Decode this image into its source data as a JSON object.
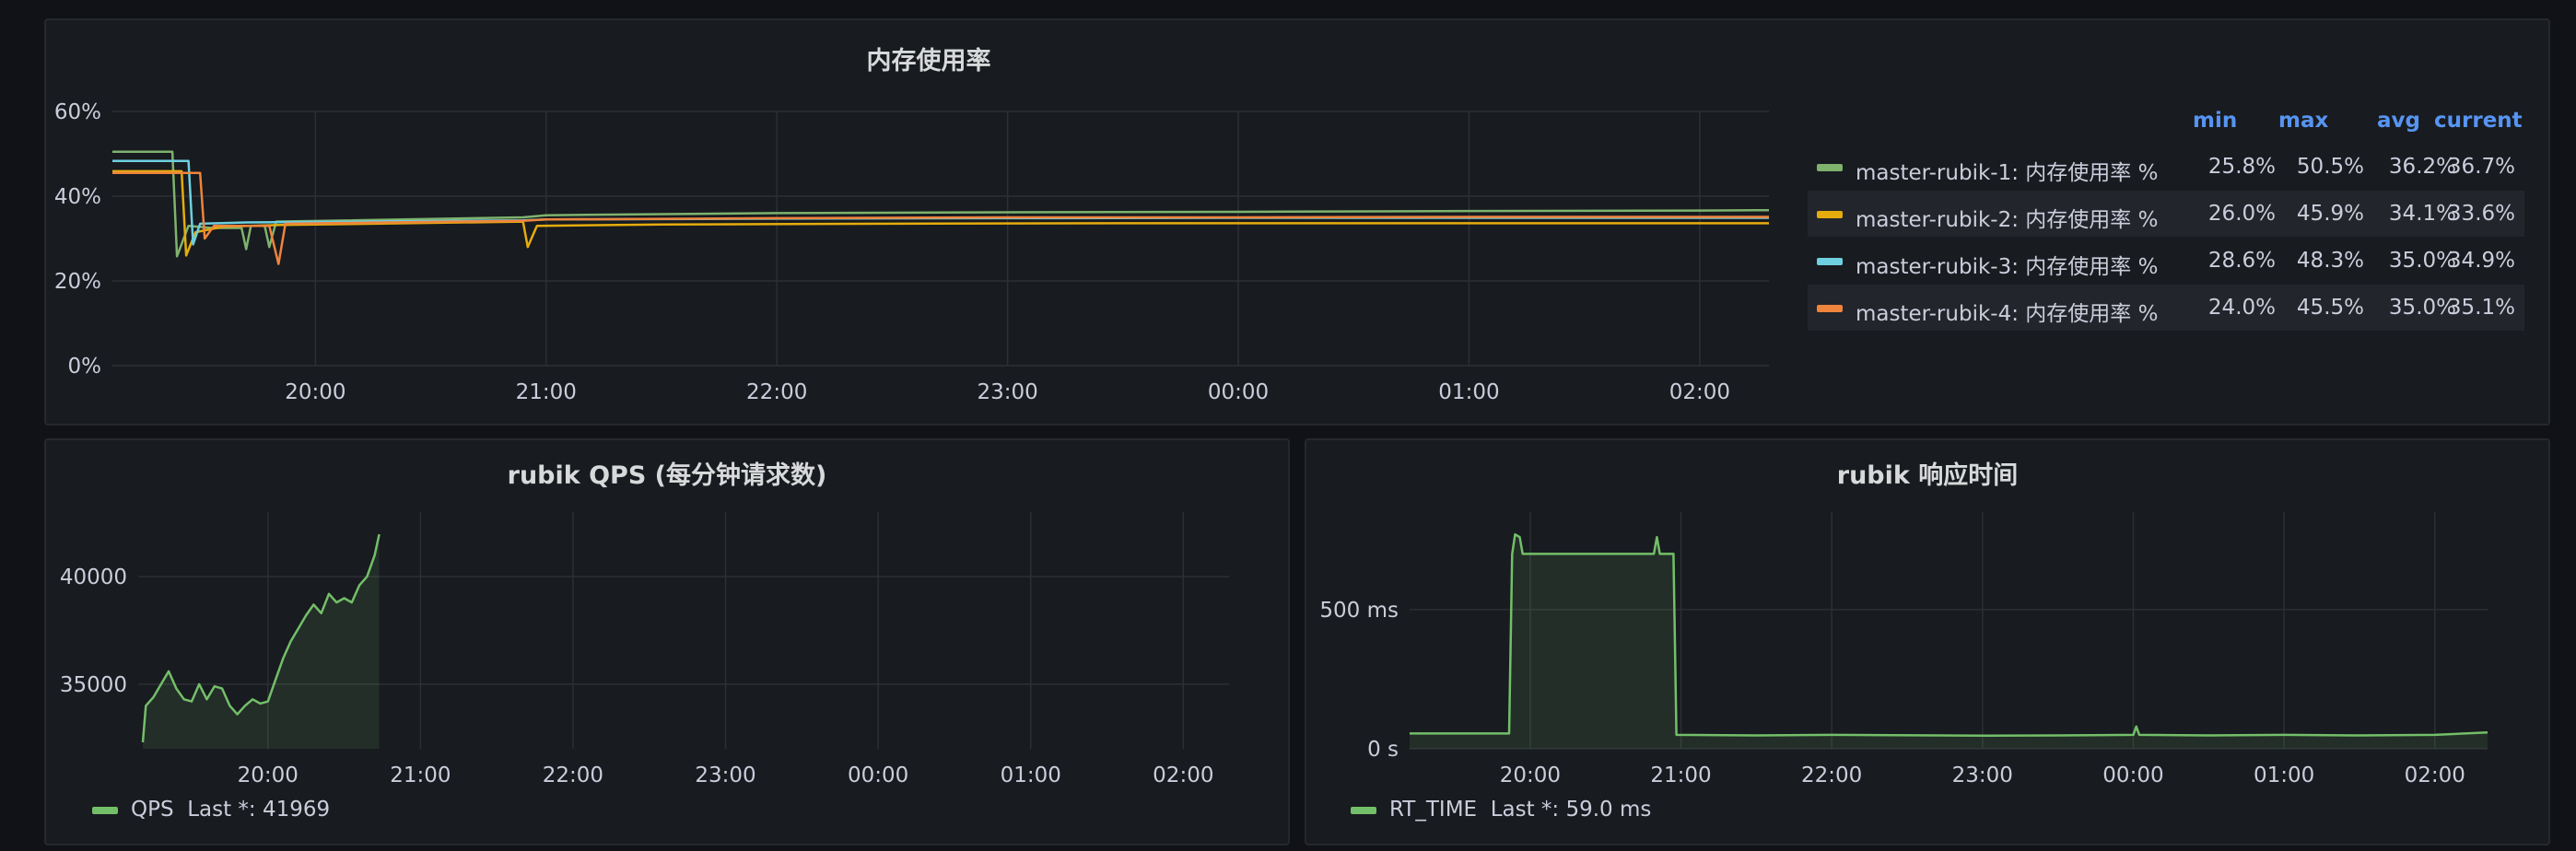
{
  "colors": {
    "rubik1": "#7eb26d",
    "rubik2": "#e5ac0e",
    "rubik3": "#6ed0e0",
    "rubik4": "#ef843c",
    "qps": "#73bf69",
    "rt": "#73bf69",
    "legend_header": "#5794f2"
  },
  "memory_panel": {
    "title": "内存使用率",
    "legend_headers": {
      "min": "min",
      "max": "max",
      "avg": "avg",
      "current": "current"
    },
    "legend_rows": [
      {
        "name": "master-rubik-1: 内存使用率 %",
        "min": "25.8%",
        "max": "50.5%",
        "avg": "36.2%",
        "current": "36.7%"
      },
      {
        "name": "master-rubik-2: 内存使用率 %",
        "min": "26.0%",
        "max": "45.9%",
        "avg": "34.1%",
        "current": "33.6%"
      },
      {
        "name": "master-rubik-3: 内存使用率 %",
        "min": "28.6%",
        "max": "48.3%",
        "avg": "35.0%",
        "current": "34.9%"
      },
      {
        "name": "master-rubik-4: 内存使用率 %",
        "min": "24.0%",
        "max": "45.5%",
        "avg": "35.0%",
        "current": "35.1%"
      }
    ]
  },
  "qps_panel": {
    "title": "rubik QPS (每分钟请求数)",
    "legend_name": "QPS",
    "legend_stat": "Last *: 41969"
  },
  "rt_panel": {
    "title": "rubik 响应时间",
    "legend_name": "RT_TIME",
    "legend_stat": "Last *: 59.0 ms"
  },
  "chart_data": [
    {
      "type": "line",
      "title": "内存使用率",
      "x_ticks": [
        "20:00",
        "21:00",
        "22:00",
        "23:00",
        "00:00",
        "01:00",
        "02:00"
      ],
      "y_ticks": [
        "0%",
        "20%",
        "40%",
        "60%"
      ],
      "xlim": [
        19.12,
        26.3
      ],
      "ylim": [
        0,
        60
      ],
      "grid": true,
      "legend_position": "right",
      "series": [
        {
          "name": "master-rubik-1: 内存使用率 %",
          "points": [
            [
              19.12,
              50.5
            ],
            [
              19.38,
              50.5
            ],
            [
              19.4,
              25.8
            ],
            [
              19.45,
              33
            ],
            [
              19.55,
              32.5
            ],
            [
              19.68,
              32.5
            ],
            [
              19.7,
              27.5
            ],
            [
              19.72,
              33
            ],
            [
              19.78,
              33
            ],
            [
              19.8,
              28
            ],
            [
              19.83,
              34
            ],
            [
              20.9,
              35
            ],
            [
              21.0,
              35.5
            ],
            [
              22.0,
              36
            ],
            [
              23.0,
              36.2
            ],
            [
              24.0,
              36.3
            ],
            [
              25.0,
              36.5
            ],
            [
              26.0,
              36.6
            ],
            [
              26.3,
              36.7
            ]
          ]
        },
        {
          "name": "master-rubik-2: 内存使用率 %",
          "points": [
            [
              19.12,
              45.9
            ],
            [
              19.42,
              45.9
            ],
            [
              19.44,
              26
            ],
            [
              19.48,
              31.5
            ],
            [
              19.6,
              32.8
            ],
            [
              19.85,
              33.2
            ],
            [
              20.9,
              34
            ],
            [
              20.92,
              28
            ],
            [
              20.96,
              33
            ],
            [
              21.5,
              33.3
            ],
            [
              22.5,
              33.5
            ],
            [
              23.5,
              33.6
            ],
            [
              24.5,
              33.6
            ],
            [
              25.5,
              33.6
            ],
            [
              26.3,
              33.6
            ]
          ]
        },
        {
          "name": "master-rubik-3: 内存使用率 %",
          "points": [
            [
              19.12,
              48.3
            ],
            [
              19.45,
              48.3
            ],
            [
              19.47,
              28.6
            ],
            [
              19.5,
              33.5
            ],
            [
              19.7,
              33.8
            ],
            [
              20.9,
              34.3
            ],
            [
              21.0,
              34.5
            ],
            [
              22.0,
              34.7
            ],
            [
              23.0,
              34.8
            ],
            [
              24.0,
              34.9
            ],
            [
              25.0,
              34.9
            ],
            [
              26.3,
              34.9
            ]
          ]
        },
        {
          "name": "master-rubik-4: 内存使用率 %",
          "points": [
            [
              19.12,
              45.5
            ],
            [
              19.5,
              45.5
            ],
            [
              19.52,
              30
            ],
            [
              19.56,
              33
            ],
            [
              19.8,
              33
            ],
            [
              19.84,
              24
            ],
            [
              19.87,
              33.5
            ],
            [
              20.9,
              34.2
            ],
            [
              21.0,
              34.5
            ],
            [
              22.0,
              34.8
            ],
            [
              23.0,
              35
            ],
            [
              24.0,
              35
            ],
            [
              25.0,
              35.1
            ],
            [
              26.3,
              35.1
            ]
          ]
        }
      ]
    },
    {
      "type": "area",
      "title": "rubik QPS (每分钟请求数)",
      "x_ticks": [
        "20:00",
        "21:00",
        "22:00",
        "23:00",
        "00:00",
        "01:00",
        "02:00"
      ],
      "y_ticks": [
        "35000",
        "40000"
      ],
      "xlim": [
        19.15,
        26.3
      ],
      "ylim": [
        32000,
        43000
      ],
      "grid": true,
      "legend_position": "bottom-left",
      "series": [
        {
          "name": "QPS",
          "points": [
            [
              19.18,
              32300
            ],
            [
              19.2,
              34000
            ],
            [
              19.25,
              34400
            ],
            [
              19.3,
              35000
            ],
            [
              19.35,
              35600
            ],
            [
              19.4,
              34800
            ],
            [
              19.45,
              34300
            ],
            [
              19.5,
              34200
            ],
            [
              19.55,
              35000
            ],
            [
              19.6,
              34300
            ],
            [
              19.65,
              34900
            ],
            [
              19.7,
              34800
            ],
            [
              19.75,
              34000
            ],
            [
              19.8,
              33600
            ],
            [
              19.85,
              34000
            ],
            [
              19.9,
              34300
            ],
            [
              19.95,
              34100
            ],
            [
              20.0,
              34200
            ],
            [
              20.05,
              35200
            ],
            [
              20.1,
              36200
            ],
            [
              20.15,
              37000
            ],
            [
              20.2,
              37600
            ],
            [
              20.25,
              38200
            ],
            [
              20.3,
              38700
            ],
            [
              20.35,
              38300
            ],
            [
              20.4,
              39200
            ],
            [
              20.45,
              38800
            ],
            [
              20.5,
              39000
            ],
            [
              20.55,
              38800
            ],
            [
              20.6,
              39600
            ],
            [
              20.65,
              40000
            ],
            [
              20.7,
              41000
            ],
            [
              20.73,
              41969
            ]
          ]
        }
      ]
    },
    {
      "type": "area",
      "title": "rubik 响应时间",
      "x_ticks": [
        "20:00",
        "21:00",
        "22:00",
        "23:00",
        "00:00",
        "01:00",
        "02:00"
      ],
      "y_ticks": [
        "0 s",
        "500 ms"
      ],
      "xlim": [
        19.2,
        26.35
      ],
      "ylim": [
        0,
        850
      ],
      "grid": true,
      "legend_position": "bottom-left",
      "series": [
        {
          "name": "RT_TIME",
          "points": [
            [
              19.2,
              55
            ],
            [
              19.5,
              55
            ],
            [
              19.86,
              55
            ],
            [
              19.88,
              700
            ],
            [
              19.9,
              770
            ],
            [
              19.93,
              760
            ],
            [
              19.95,
              700
            ],
            [
              20.2,
              700
            ],
            [
              20.5,
              700
            ],
            [
              20.82,
              700
            ],
            [
              20.84,
              760
            ],
            [
              20.86,
              700
            ],
            [
              20.95,
              700
            ],
            [
              20.97,
              50
            ],
            [
              21.5,
              48
            ],
            [
              22.0,
              50
            ],
            [
              23.0,
              47
            ],
            [
              23.5,
              48
            ],
            [
              24.0,
              50
            ],
            [
              24.02,
              80
            ],
            [
              24.04,
              50
            ],
            [
              24.5,
              48
            ],
            [
              25.0,
              50
            ],
            [
              25.5,
              48
            ],
            [
              26.0,
              50
            ],
            [
              26.35,
              59
            ]
          ]
        }
      ]
    }
  ]
}
